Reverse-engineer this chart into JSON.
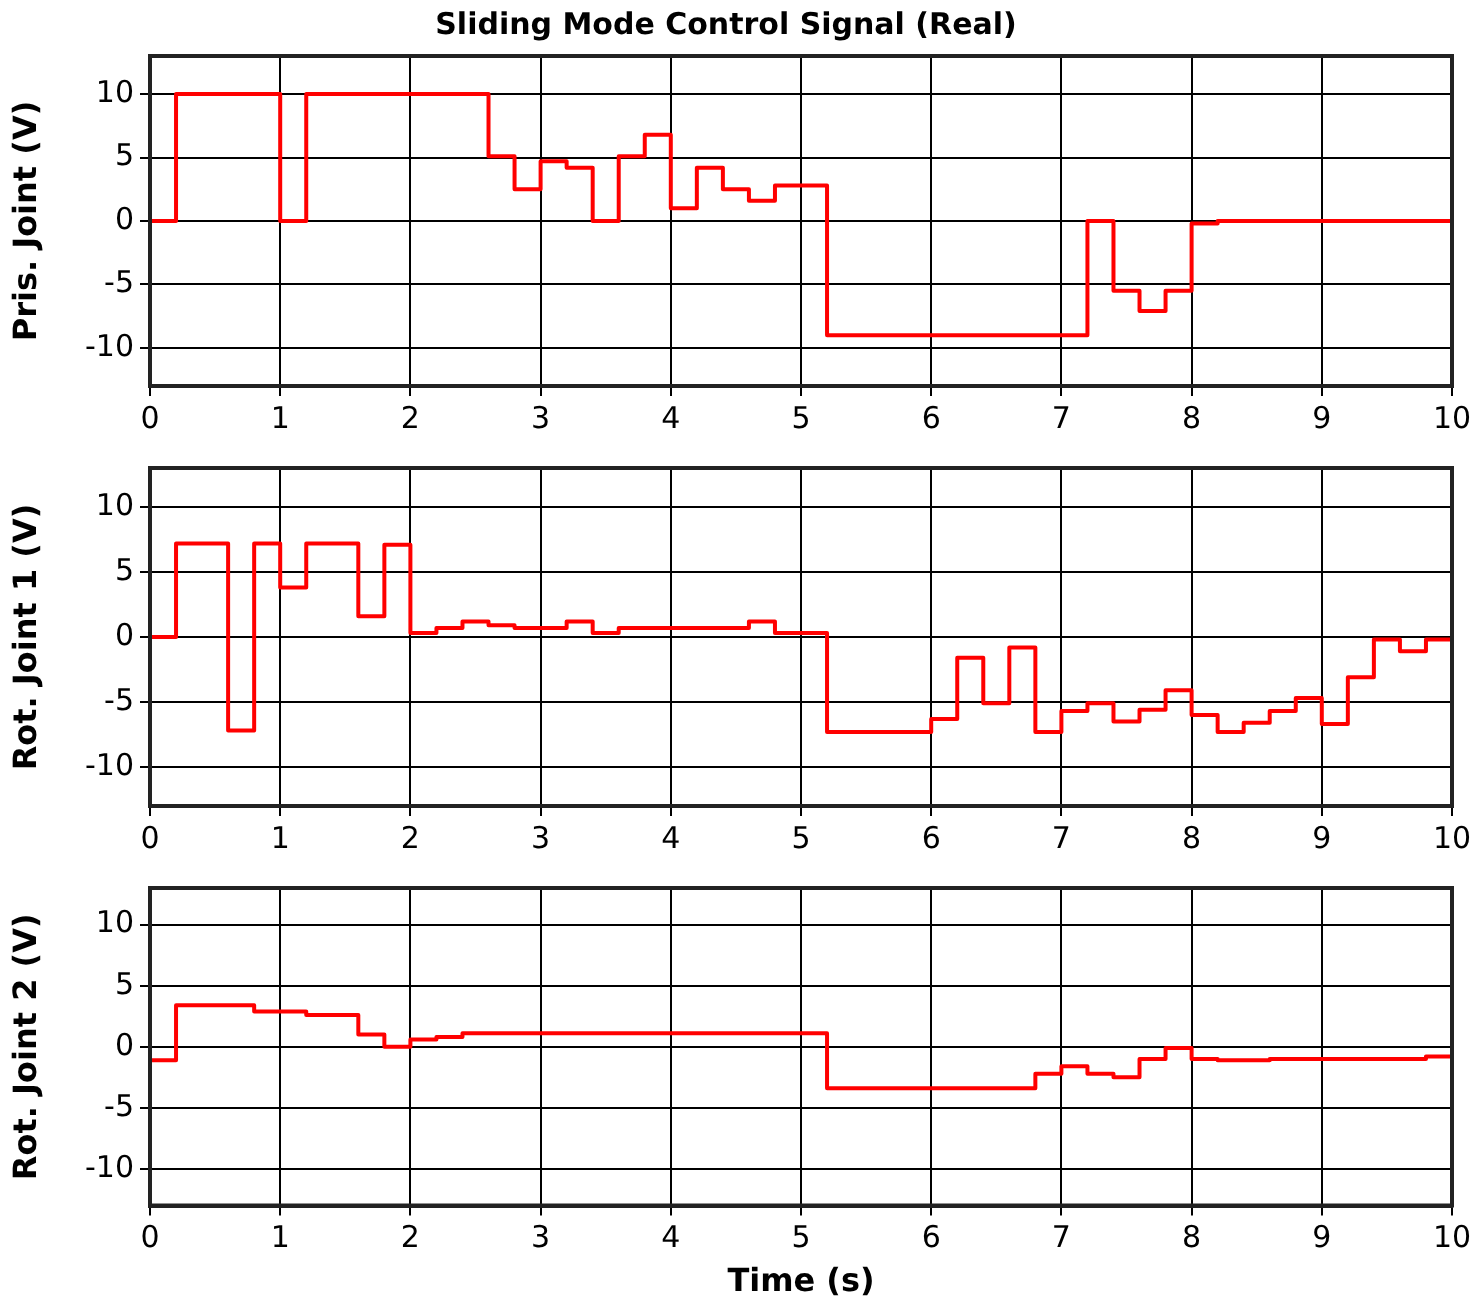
{
  "chart_data": [
    {
      "type": "step",
      "title": "Sliding Mode Control Signal (Real)",
      "ylabel": "Pris. Joint (V)",
      "xlim": [
        0,
        10
      ],
      "xticks": [
        0,
        1,
        2,
        3,
        4,
        5,
        6,
        7,
        8,
        9,
        10
      ],
      "ylim": [
        -13,
        13
      ],
      "yticks": [
        -10,
        -5,
        0,
        5,
        10
      ],
      "grid": true,
      "legend": false,
      "series": [
        {
          "color": "#ff0000",
          "x": [
            0,
            0.2,
            1.0,
            1.2,
            2.6,
            2.8,
            3.0,
            3.2,
            3.4,
            3.6,
            3.8,
            4.0,
            4.2,
            4.4,
            4.6,
            4.8,
            5.2,
            7.2,
            7.4,
            7.6,
            7.8,
            8.0,
            8.2,
            10
          ],
          "values": [
            0,
            10,
            0,
            10,
            5.1,
            2.5,
            4.7,
            4.2,
            0,
            5.1,
            6.8,
            1.0,
            4.2,
            2.5,
            1.6,
            2.8,
            -9.0,
            0,
            -5.5,
            -7.1,
            -5.5,
            -0.2,
            0,
            0
          ]
        }
      ]
    },
    {
      "type": "step",
      "ylabel": "Rot. Joint 1 (V)",
      "xlim": [
        0,
        10
      ],
      "xticks": [
        0,
        1,
        2,
        3,
        4,
        5,
        6,
        7,
        8,
        9,
        10
      ],
      "ylim": [
        -13,
        13
      ],
      "yticks": [
        -10,
        -5,
        0,
        5,
        10
      ],
      "grid": true,
      "legend": false,
      "series": [
        {
          "color": "#ff0000",
          "x": [
            0,
            0.2,
            0.6,
            0.8,
            1.0,
            1.2,
            1.6,
            1.8,
            2.0,
            2.2,
            2.4,
            2.6,
            2.8,
            3.2,
            3.4,
            3.6,
            4.6,
            4.8,
            5.2,
            6.0,
            6.2,
            6.4,
            6.6,
            6.8,
            7.0,
            7.2,
            7.4,
            7.6,
            7.8,
            8.0,
            8.2,
            8.4,
            8.6,
            8.8,
            9.0,
            9.2,
            9.4,
            9.6,
            9.8,
            10
          ],
          "values": [
            0,
            7.2,
            -7.2,
            7.2,
            3.8,
            7.2,
            1.6,
            7.1,
            0.3,
            0.7,
            1.2,
            0.9,
            0.7,
            1.2,
            0.3,
            0.7,
            1.2,
            0.3,
            -7.3,
            -6.3,
            -1.6,
            -5.1,
            -0.8,
            -7.3,
            -5.7,
            -5.1,
            -6.5,
            -5.6,
            -4.1,
            -6.0,
            -7.3,
            -6.6,
            -5.7,
            -4.7,
            -6.7,
            -3.1,
            -0.2,
            -1.1,
            -0.2,
            -0.2
          ]
        }
      ]
    },
    {
      "type": "step",
      "ylabel": "Rot. Joint 2 (V)",
      "xlabel": "Time (s)",
      "xlim": [
        0,
        10
      ],
      "xticks": [
        0,
        1,
        2,
        3,
        4,
        5,
        6,
        7,
        8,
        9,
        10
      ],
      "ylim": [
        -13,
        13
      ],
      "yticks": [
        -10,
        -5,
        0,
        5,
        10
      ],
      "grid": true,
      "legend": false,
      "series": [
        {
          "color": "#ff0000",
          "x": [
            0,
            0.2,
            0.8,
            1.2,
            1.6,
            1.8,
            2.0,
            2.2,
            2.4,
            5.2,
            6.8,
            7.0,
            7.2,
            7.4,
            7.6,
            7.8,
            8.0,
            8.2,
            8.6,
            9.8,
            10
          ],
          "values": [
            -1.1,
            3.4,
            2.9,
            2.6,
            1.0,
            0,
            0.6,
            0.8,
            1.1,
            -3.4,
            -2.2,
            -1.6,
            -2.2,
            -2.5,
            -1.0,
            -0.1,
            -1.0,
            -1.1,
            -1.0,
            -0.8,
            -0.8
          ]
        }
      ]
    }
  ]
}
